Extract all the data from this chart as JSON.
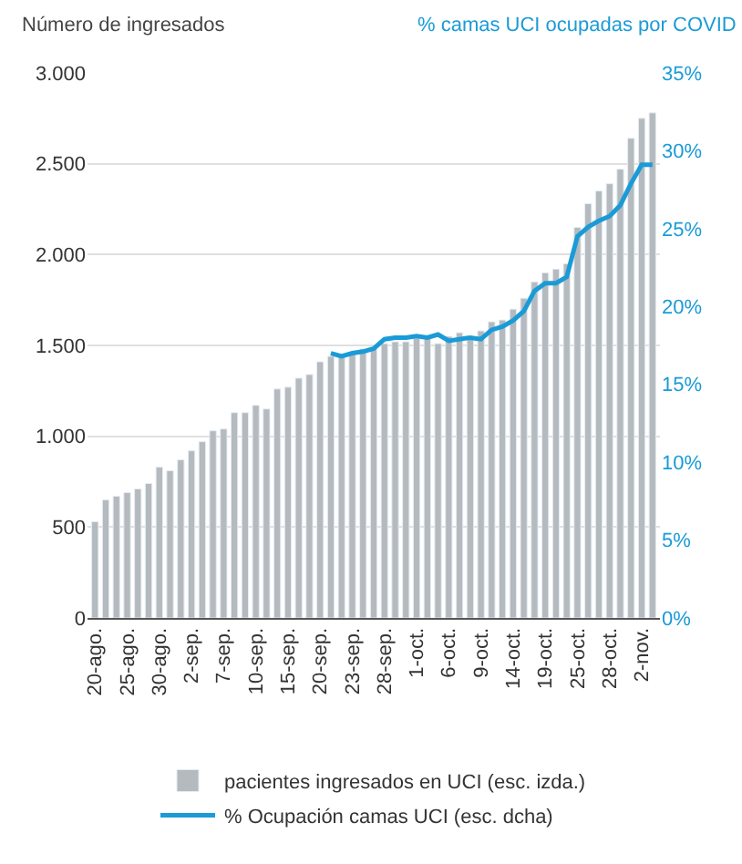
{
  "chart_data": {
    "type": "bar",
    "ylabel": "Número de ingresados",
    "y2label": "% camas UCI ocupadas por COVID",
    "categories": [
      "20-ago.",
      null,
      null,
      "25-ago.",
      null,
      null,
      "30-ago.",
      null,
      null,
      "2-sep.",
      null,
      null,
      "7-sep.",
      null,
      null,
      "10-sep.",
      null,
      null,
      "15-sep.",
      null,
      null,
      "20-sep.",
      null,
      null,
      "23-sep.",
      null,
      null,
      "28-sep.",
      null,
      null,
      "1-oct.",
      null,
      null,
      "6-oct.",
      null,
      null,
      "9-oct.",
      null,
      null,
      "14-oct.",
      null,
      null,
      "19-oct.",
      null,
      null,
      "25-oct.",
      null,
      null,
      "28-oct.",
      null,
      null,
      "2-nov.",
      null
    ],
    "series": [
      {
        "name": "pacientes ingresados en UCI (esc. izda.)",
        "color": "#b4babd",
        "values": [
          530,
          650,
          670,
          690,
          710,
          740,
          830,
          810,
          870,
          920,
          970,
          1030,
          1040,
          1130,
          1130,
          1170,
          1150,
          1260,
          1270,
          1320,
          1340,
          1410,
          1440,
          1450,
          1460,
          1480,
          1480,
          1510,
          1520,
          1520,
          1540,
          1550,
          1510,
          1550,
          1570,
          1550,
          1580,
          1630,
          1640,
          1700,
          1760,
          1850,
          1900,
          1920,
          1950,
          2150,
          2280,
          2350,
          2390,
          2470,
          2640,
          2750,
          2780
        ]
      },
      {
        "name": "% Ocupación camas UCI (esc. dcha)",
        "type": "line",
        "axis": "y2",
        "color": "#1a9bd7",
        "values": [
          null,
          null,
          null,
          null,
          null,
          null,
          null,
          null,
          null,
          null,
          null,
          null,
          null,
          null,
          null,
          null,
          null,
          null,
          null,
          null,
          null,
          null,
          17.0,
          16.8,
          17.0,
          17.1,
          17.3,
          17.9,
          18.0,
          18.0,
          18.1,
          18.0,
          18.2,
          17.8,
          17.9,
          18.0,
          17.9,
          18.5,
          18.7,
          19.1,
          19.7,
          21.0,
          21.5,
          21.5,
          21.9,
          24.5,
          25.1,
          25.5,
          25.8,
          26.5,
          27.9,
          29.1,
          29.1
        ]
      }
    ],
    "ylim": [
      0,
      3000
    ],
    "yticks": [
      {
        "value": 0,
        "label": "0"
      },
      {
        "value": 500,
        "label": "500"
      },
      {
        "value": 1000,
        "label": "1.000"
      },
      {
        "value": 1500,
        "label": "1.500"
      },
      {
        "value": 2000,
        "label": "2.000"
      },
      {
        "value": 2500,
        "label": "2.500"
      },
      {
        "value": 3000,
        "label": "3.000"
      }
    ],
    "y2lim": [
      0,
      35
    ],
    "y2ticks": [
      {
        "value": 0,
        "label": "0%"
      },
      {
        "value": 5,
        "label": "5%"
      },
      {
        "value": 10,
        "label": "10%"
      },
      {
        "value": 15,
        "label": "15%"
      },
      {
        "value": 20,
        "label": "20%"
      },
      {
        "value": 25,
        "label": "25%"
      },
      {
        "value": 30,
        "label": "30%"
      },
      {
        "value": 35,
        "label": "35%"
      }
    ],
    "grid": "y",
    "legend": "bottom",
    "line_style": "solid",
    "marker": "none"
  }
}
